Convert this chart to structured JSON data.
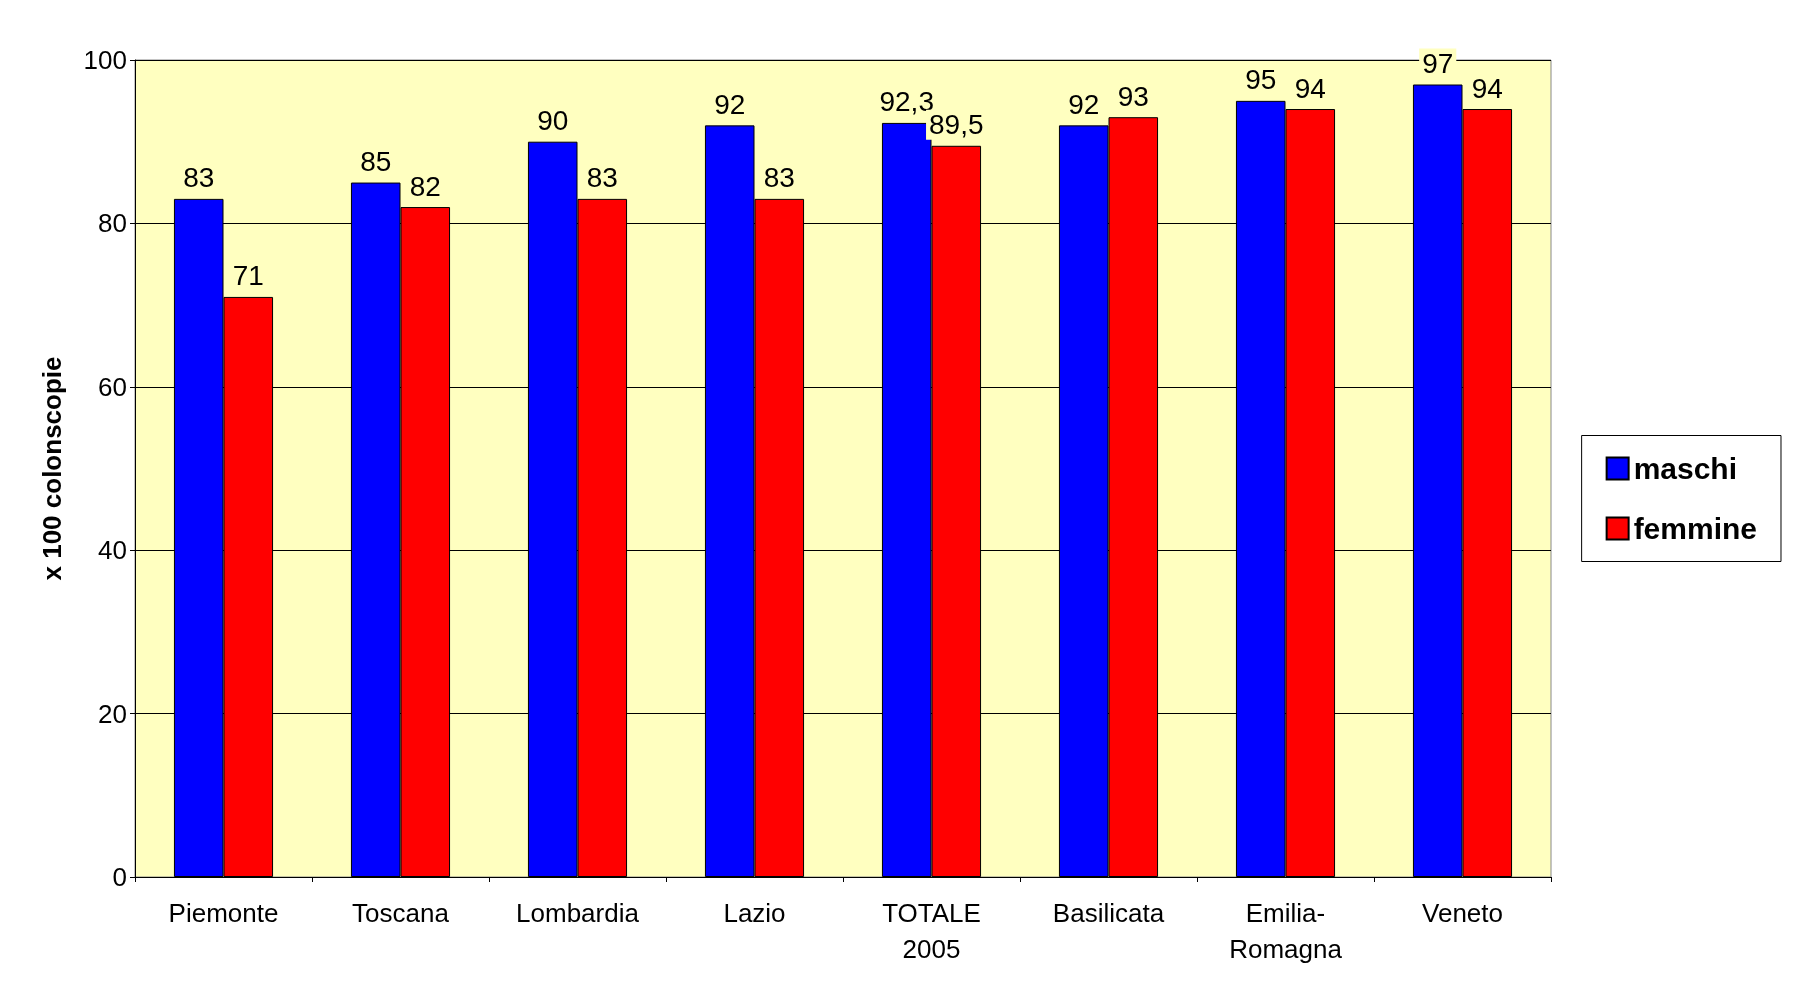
{
  "chart_data": {
    "type": "bar",
    "ylabel": "x 100 colonscopie",
    "categories": [
      "Piemonte",
      "Toscana",
      "Lombardia",
      "Lazio",
      "TOTALE\n2005",
      "Basilicata",
      "Emilia-\nRomagna",
      "Veneto"
    ],
    "series": [
      {
        "name": "maschi",
        "color": "#0000ff",
        "values": [
          83,
          85,
          90,
          92,
          92.3,
          92,
          95,
          97
        ],
        "value_labels": [
          "83",
          "85",
          "90",
          "92",
          "92,3",
          "92",
          "95",
          "97"
        ]
      },
      {
        "name": "femmine",
        "color": "#ff0000",
        "values": [
          71,
          82,
          83,
          83,
          89.5,
          93,
          94,
          94
        ],
        "value_labels": [
          "71",
          "82",
          "83",
          "83",
          "89,5",
          "93",
          "94",
          "94"
        ]
      }
    ],
    "ylim": [
      0,
      100
    ],
    "yticks": [
      0,
      20,
      40,
      60,
      80,
      100
    ],
    "grid": "y",
    "legend": "right"
  }
}
